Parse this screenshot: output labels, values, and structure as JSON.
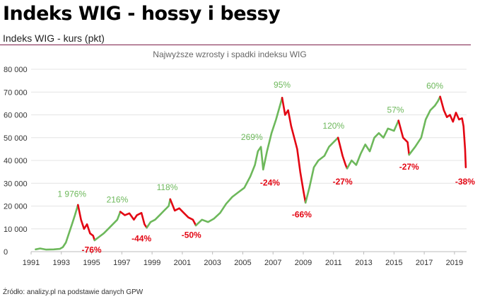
{
  "header": {
    "title": "Indeks WIG - hossy i bessy",
    "subtitle": "Indeks WIG - kurs (pkt)"
  },
  "footer": {
    "source": "Źródło: analizy.pl na podstawie danych GPW"
  },
  "colors": {
    "rise": "#6db85b",
    "fall": "#e30613",
    "grid": "#e4e4e4",
    "rule": "#7d1d49"
  },
  "chart_data": {
    "type": "line",
    "title": "Najwyższe wzrosty i spadki indeksu WIG",
    "xlabel": "",
    "ylabel": "",
    "xlim": [
      1991,
      2019.8
    ],
    "ylim": [
      0,
      80000
    ],
    "grid": true,
    "x_ticks": [
      1991,
      1993,
      1995,
      1997,
      1999,
      2001,
      2003,
      2005,
      2007,
      2009,
      2011,
      2013,
      2015,
      2017,
      2019
    ],
    "x_tick_labels": [
      "1991",
      "1993",
      "1995",
      "1997",
      "1999",
      "2001",
      "2003",
      "2005",
      "2007",
      "2009",
      "2011",
      "2013",
      "2015",
      "2017",
      "2019"
    ],
    "y_ticks": [
      0,
      10000,
      20000,
      30000,
      40000,
      50000,
      60000,
      70000,
      80000
    ],
    "y_tick_labels": [
      "0",
      "10 000",
      "20 000",
      "30 000",
      "40 000",
      "50 000",
      "60 000",
      "70 000",
      "80 000"
    ],
    "series": [
      {
        "phase": "rise",
        "points": [
          [
            1991.3,
            1000
          ],
          [
            1991.6,
            1400
          ],
          [
            1992.0,
            900
          ],
          [
            1992.5,
            1000
          ],
          [
            1992.9,
            1200
          ],
          [
            1993.1,
            2000
          ],
          [
            1993.3,
            4000
          ],
          [
            1993.5,
            8000
          ],
          [
            1993.7,
            12000
          ],
          [
            1993.9,
            16000
          ],
          [
            1994.1,
            20500
          ]
        ]
      },
      {
        "phase": "fall",
        "points": [
          [
            1994.1,
            20500
          ],
          [
            1994.3,
            14000
          ],
          [
            1994.5,
            10000
          ],
          [
            1994.7,
            12000
          ],
          [
            1994.9,
            8000
          ],
          [
            1995.1,
            7000
          ],
          [
            1995.2,
            5000
          ]
        ]
      },
      {
        "phase": "rise",
        "points": [
          [
            1995.2,
            5000
          ],
          [
            1995.5,
            6500
          ],
          [
            1995.8,
            8000
          ],
          [
            1996.1,
            10000
          ],
          [
            1996.4,
            12000
          ],
          [
            1996.7,
            14000
          ],
          [
            1996.9,
            17500
          ]
        ]
      },
      {
        "phase": "fall",
        "points": [
          [
            1996.9,
            17500
          ],
          [
            1997.2,
            16000
          ],
          [
            1997.5,
            16800
          ],
          [
            1997.8,
            14000
          ],
          [
            1998.0,
            16000
          ],
          [
            1998.3,
            17000
          ],
          [
            1998.5,
            12000
          ],
          [
            1998.65,
            10500
          ]
        ]
      },
      {
        "phase": "rise",
        "points": [
          [
            1998.65,
            10500
          ],
          [
            1998.9,
            13000
          ],
          [
            1999.2,
            14000
          ],
          [
            1999.5,
            16000
          ],
          [
            1999.8,
            18000
          ],
          [
            2000.1,
            20000
          ],
          [
            2000.2,
            23000
          ]
        ]
      },
      {
        "phase": "fall",
        "points": [
          [
            2000.2,
            23000
          ],
          [
            2000.5,
            18000
          ],
          [
            2000.8,
            19000
          ],
          [
            2001.1,
            17000
          ],
          [
            2001.4,
            15000
          ],
          [
            2001.7,
            14000
          ],
          [
            2001.9,
            11500
          ]
        ]
      },
      {
        "phase": "rise",
        "points": [
          [
            2001.9,
            11500
          ],
          [
            2002.3,
            14000
          ],
          [
            2002.7,
            13000
          ],
          [
            2003.1,
            14500
          ],
          [
            2003.5,
            17000
          ],
          [
            2003.9,
            21000
          ],
          [
            2004.3,
            24000
          ],
          [
            2004.7,
            26000
          ],
          [
            2005.1,
            28000
          ],
          [
            2005.5,
            33000
          ],
          [
            2005.8,
            38000
          ],
          [
            2006.0,
            44000
          ],
          [
            2006.2,
            46000
          ],
          [
            2006.35,
            36000
          ],
          [
            2006.6,
            44000
          ],
          [
            2006.9,
            52000
          ],
          [
            2007.2,
            58000
          ],
          [
            2007.5,
            65000
          ],
          [
            2007.6,
            67500
          ]
        ]
      },
      {
        "phase": "fall",
        "points": [
          [
            2007.6,
            67500
          ],
          [
            2007.8,
            60000
          ],
          [
            2008.0,
            62000
          ],
          [
            2008.2,
            55000
          ],
          [
            2008.4,
            50000
          ],
          [
            2008.6,
            45000
          ],
          [
            2008.8,
            35000
          ],
          [
            2009.0,
            27000
          ],
          [
            2009.15,
            21500
          ]
        ]
      },
      {
        "phase": "rise",
        "points": [
          [
            2009.15,
            21500
          ],
          [
            2009.4,
            28000
          ],
          [
            2009.7,
            37000
          ],
          [
            2010.0,
            40000
          ],
          [
            2010.4,
            42000
          ],
          [
            2010.7,
            46000
          ],
          [
            2011.0,
            48000
          ],
          [
            2011.3,
            50000
          ]
        ]
      },
      {
        "phase": "fall",
        "points": [
          [
            2011.3,
            50000
          ],
          [
            2011.6,
            42000
          ],
          [
            2011.8,
            38000
          ],
          [
            2011.9,
            36500
          ]
        ]
      },
      {
        "phase": "rise",
        "points": [
          [
            2011.9,
            36500
          ],
          [
            2012.2,
            40000
          ],
          [
            2012.5,
            38000
          ],
          [
            2012.8,
            43000
          ],
          [
            2013.1,
            47000
          ],
          [
            2013.4,
            44000
          ],
          [
            2013.7,
            50000
          ],
          [
            2014.0,
            52000
          ],
          [
            2014.3,
            50000
          ],
          [
            2014.6,
            54000
          ],
          [
            2015.0,
            53000
          ],
          [
            2015.3,
            57500
          ]
        ]
      },
      {
        "phase": "fall",
        "points": [
          [
            2015.3,
            57500
          ],
          [
            2015.6,
            50000
          ],
          [
            2015.9,
            48000
          ],
          [
            2016.0,
            42500
          ]
        ]
      },
      {
        "phase": "rise",
        "points": [
          [
            2016.0,
            42500
          ],
          [
            2016.4,
            46000
          ],
          [
            2016.8,
            50000
          ],
          [
            2017.1,
            58000
          ],
          [
            2017.4,
            62000
          ],
          [
            2017.7,
            64000
          ],
          [
            2017.9,
            66000
          ],
          [
            2018.05,
            68000
          ]
        ]
      },
      {
        "phase": "fall",
        "points": [
          [
            2018.05,
            68000
          ],
          [
            2018.3,
            62000
          ],
          [
            2018.5,
            59000
          ],
          [
            2018.7,
            60000
          ],
          [
            2018.9,
            57000
          ],
          [
            2019.1,
            61000
          ],
          [
            2019.3,
            58000
          ],
          [
            2019.5,
            58500
          ],
          [
            2019.6,
            55000
          ],
          [
            2019.7,
            45000
          ],
          [
            2019.75,
            37000
          ]
        ]
      }
    ],
    "annotations": [
      {
        "text": "1 976%",
        "x": 1993.7,
        "y": 24000,
        "phase": "rise"
      },
      {
        "text": "-76%",
        "x": 1995.0,
        "y": -500,
        "phase": "fall"
      },
      {
        "text": "216%",
        "x": 1996.7,
        "y": 21500,
        "phase": "rise"
      },
      {
        "text": "-44%",
        "x": 1998.3,
        "y": 4500,
        "phase": "fall"
      },
      {
        "text": "118%",
        "x": 2000.0,
        "y": 27000,
        "phase": "rise"
      },
      {
        "text": "-50%",
        "x": 2001.6,
        "y": 6000,
        "phase": "fall"
      },
      {
        "text": "269%",
        "x": 2005.6,
        "y": 49000,
        "phase": "rise"
      },
      {
        "text": "-24%",
        "x": 2006.8,
        "y": 29000,
        "phase": "fall"
      },
      {
        "text": "95%",
        "x": 2007.6,
        "y": 72000,
        "phase": "rise"
      },
      {
        "text": "-66%",
        "x": 2008.9,
        "y": 15000,
        "phase": "fall"
      },
      {
        "text": "120%",
        "x": 2011.0,
        "y": 54000,
        "phase": "rise"
      },
      {
        "text": "-27%",
        "x": 2011.6,
        "y": 29500,
        "phase": "fall"
      },
      {
        "text": "57%",
        "x": 2015.1,
        "y": 61000,
        "phase": "rise"
      },
      {
        "text": "-27%",
        "x": 2016.0,
        "y": 36000,
        "phase": "fall"
      },
      {
        "text": "60%",
        "x": 2017.7,
        "y": 71500,
        "phase": "rise"
      },
      {
        "text": "-38%",
        "x": 2019.7,
        "y": 29500,
        "phase": "fall"
      }
    ]
  }
}
